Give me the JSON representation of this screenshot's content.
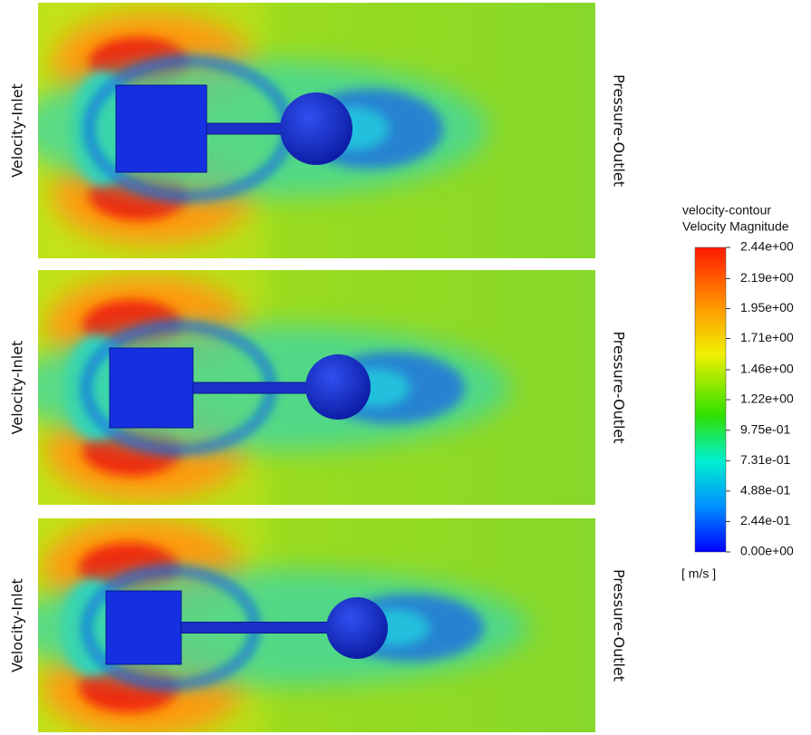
{
  "panels": [
    {
      "inlet_label": "Velocity-Inlet",
      "outlet_label": "Pressure-Outlet"
    },
    {
      "inlet_label": "Velocity-Inlet",
      "outlet_label": "Pressure-Outlet"
    },
    {
      "inlet_label": "Velocity-Inlet",
      "outlet_label": "Pressure-Outlet"
    }
  ],
  "colorbar": {
    "title": "velocity-contour",
    "subtitle": "Velocity Magnitude",
    "ticks": [
      {
        "value": 2.44,
        "label": "2.44e+00"
      },
      {
        "value": 2.19,
        "label": "2.19e+00"
      },
      {
        "value": 1.95,
        "label": "1.95e+00"
      },
      {
        "value": 1.71,
        "label": "1.71e+00"
      },
      {
        "value": 1.46,
        "label": "1.46e+00"
      },
      {
        "value": 1.22,
        "label": "1.22e+00"
      },
      {
        "value": 0.975,
        "label": "9.75e-01"
      },
      {
        "value": 0.731,
        "label": "7.31e-01"
      },
      {
        "value": 0.488,
        "label": "4.88e-01"
      },
      {
        "value": 0.244,
        "label": "2.44e-01"
      },
      {
        "value": 0,
        "label": "0.00e+00"
      }
    ],
    "unit": "[ m/s ]"
  }
}
